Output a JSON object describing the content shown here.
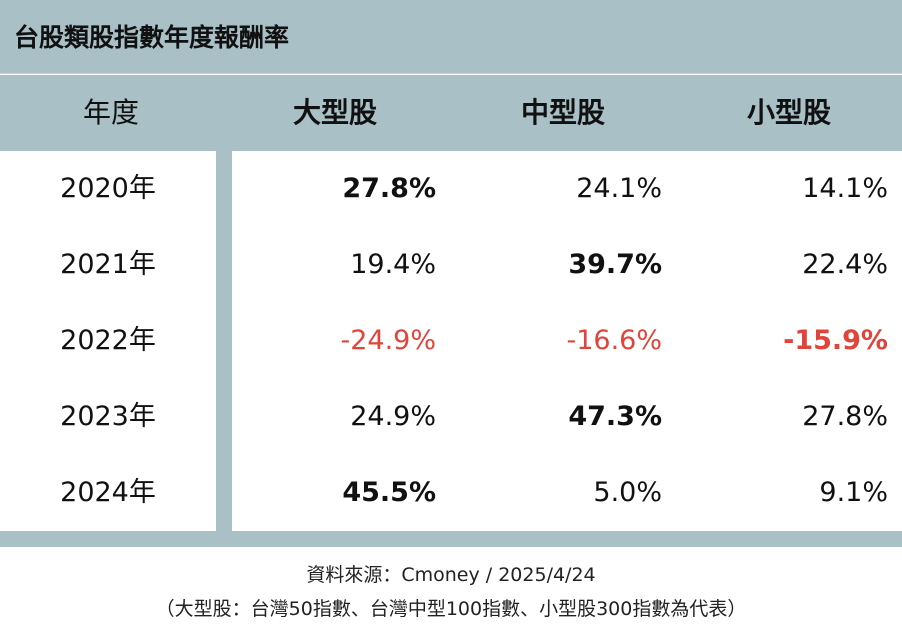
{
  "title": "台股類股指數年度報酬率",
  "header": {
    "year": "年度",
    "col1": "大型股",
    "col2": "中型股",
    "col3": "小型股"
  },
  "rows": [
    {
      "year": "2020年",
      "v1": "27.8%",
      "v2": "24.1%",
      "v3": "14.1%"
    },
    {
      "year": "2021年",
      "v1": "19.4%",
      "v2": "39.7%",
      "v3": "22.4%"
    },
    {
      "year": "2022年",
      "v1": "-24.9%",
      "v2": "-16.6%",
      "v3": "-15.9%"
    },
    {
      "year": "2023年",
      "v1": "24.9%",
      "v2": "47.3%",
      "v3": "27.8%"
    },
    {
      "year": "2024年",
      "v1": "45.5%",
      "v2": "5.0%",
      "v3": "9.1%"
    }
  ],
  "footer": {
    "source": "資料來源：Cmoney / 2025/4/24",
    "note": "（大型股：台灣50指數、台灣中型100指數、小型股300指數為代表）"
  },
  "colors": {
    "band": "#a9c1c6",
    "negative": "#e0443a"
  }
}
